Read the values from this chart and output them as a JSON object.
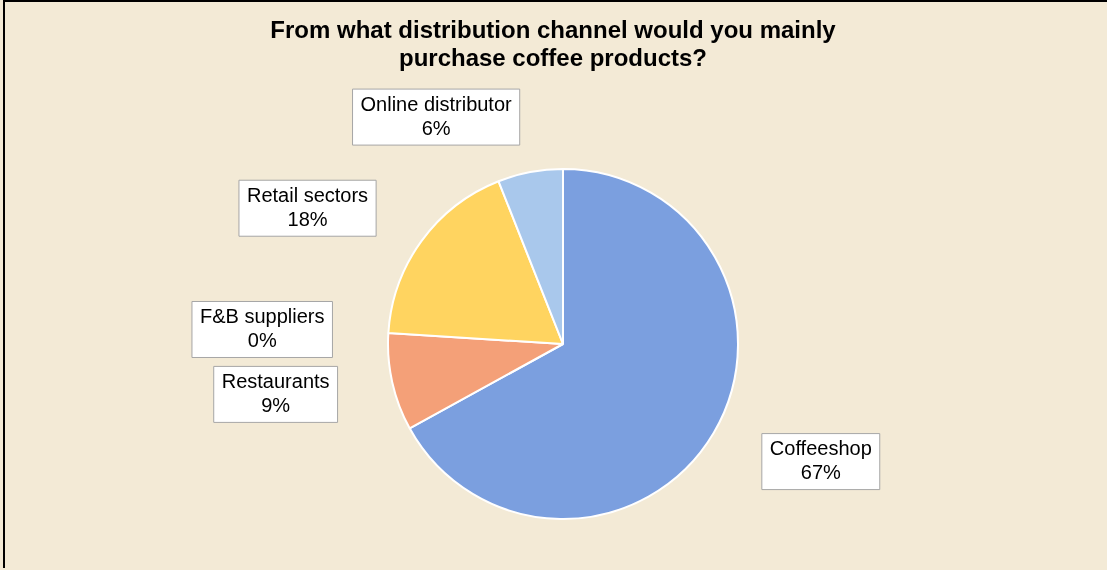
{
  "chart_data": {
    "type": "pie",
    "title": "From what distribution channel would you mainly purchase coffee products?",
    "categories": [
      "Coffeeshop",
      "Restaurants",
      "F&B suppliers",
      "Retail sectors",
      "Online distributor"
    ],
    "values": [
      67,
      9,
      0,
      18,
      6
    ],
    "value_labels": [
      "67%",
      "9%",
      "0%",
      "18%",
      "6%"
    ],
    "colors": [
      "#7b9fdf",
      "#f4a078",
      "#a5a5a5",
      "#ffd460",
      "#a9c8ec"
    ],
    "legend": false
  }
}
